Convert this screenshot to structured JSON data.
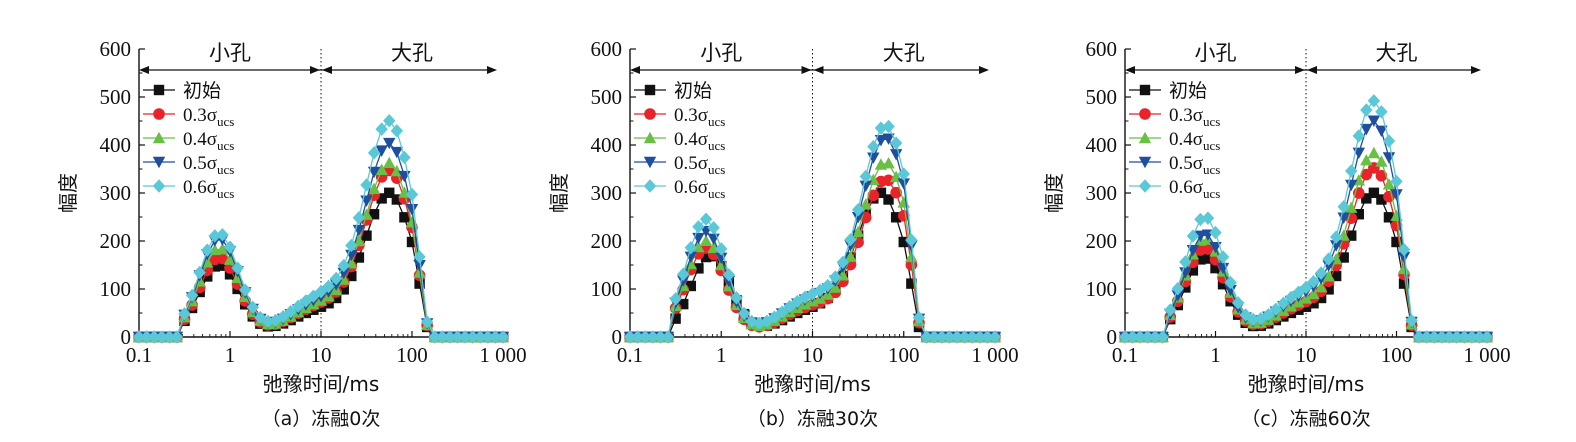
{
  "chart_data": [
    {
      "type": "line",
      "caption": "（a）冻融0次",
      "xlabel": "弛豫时间/ms",
      "ylabel": "幅度",
      "xscale": "log",
      "xlim": [
        0.1,
        1000
      ],
      "ylim": [
        0,
        600
      ],
      "xticks": [
        "0.1",
        "1",
        "10",
        "100",
        "1 000"
      ],
      "yticks": [
        "0",
        "100",
        "200",
        "300",
        "400",
        "500",
        "600"
      ],
      "region_labels": [
        "小孔",
        "大孔"
      ],
      "divider_x": 10,
      "legend": {
        "position": "top-left"
      },
      "series": [
        {
          "name": "初始",
          "peaks": [
            150,
            290
          ],
          "shift": 0
        },
        {
          "name": "0.3σucs",
          "peaks": [
            165,
            335
          ],
          "shift": 0
        },
        {
          "name": "0.4σucs",
          "peaks": [
            185,
            350
          ],
          "shift": 0
        },
        {
          "name": "0.5σucs",
          "peaks": [
            205,
            390
          ],
          "shift": 0
        },
        {
          "name": "0.6σucs",
          "peaks": [
            215,
            435
          ],
          "shift": 0
        }
      ]
    },
    {
      "type": "line",
      "caption": "（b）冻融30次",
      "xlabel": "弛豫时间/ms",
      "ylabel": "幅度",
      "xscale": "log",
      "xlim": [
        0.1,
        1000
      ],
      "ylim": [
        0,
        600
      ],
      "xticks": [
        "0.1",
        "1",
        "10",
        "100",
        "1 000"
      ],
      "yticks": [
        "0",
        "100",
        "200",
        "300",
        "400",
        "500",
        "600"
      ],
      "region_labels": [
        "小孔",
        "大孔"
      ],
      "divider_x": 10,
      "legend": {
        "position": "top-left"
      },
      "series": [
        {
          "name": "初始",
          "peaks": [
            170,
            290
          ],
          "shift": 0
        },
        {
          "name": "0.3σucs",
          "peaks": [
            185,
            320
          ],
          "shift": 0.05
        },
        {
          "name": "0.4σucs",
          "peaks": [
            200,
            355
          ],
          "shift": 0.05
        },
        {
          "name": "0.5σucs",
          "peaks": [
            220,
            405
          ],
          "shift": 0.05
        },
        {
          "name": "0.6σucs",
          "peaks": [
            245,
            430
          ],
          "shift": 0.05
        }
      ]
    },
    {
      "type": "line",
      "caption": "（c）冻融60次",
      "xlabel": "弛豫时间/ms",
      "ylabel": "幅度",
      "xscale": "log",
      "xlim": [
        0.1,
        1000
      ],
      "ylim": [
        0,
        600
      ],
      "xticks": [
        "0.1",
        "1",
        "10",
        "100",
        "1 000"
      ],
      "yticks": [
        "0",
        "100",
        "200",
        "300",
        "400",
        "500",
        "600"
      ],
      "region_labels": [
        "小孔",
        "大孔"
      ],
      "divider_x": 10,
      "legend": {
        "position": "top-left"
      },
      "series": [
        {
          "name": "初始",
          "peaks": [
            165,
            290
          ],
          "shift": 0
        },
        {
          "name": "0.3σucs",
          "peaks": [
            185,
            340
          ],
          "shift": 0
        },
        {
          "name": "0.4σucs",
          "peaks": [
            205,
            370
          ],
          "shift": 0
        },
        {
          "name": "0.5σucs",
          "peaks": [
            215,
            435
          ],
          "shift": 0
        },
        {
          "name": "0.6σucs",
          "peaks": [
            250,
            475
          ],
          "shift": 0
        }
      ]
    }
  ],
  "series_style": [
    {
      "color": "#111111",
      "marker": "square"
    },
    {
      "color": "#e8232a",
      "marker": "circle"
    },
    {
      "color": "#6abf45",
      "marker": "triangle-up"
    },
    {
      "color": "#1f4e9e",
      "marker": "triangle-down"
    },
    {
      "color": "#5bc8d8",
      "marker": "diamond"
    }
  ],
  "legend_entries": [
    {
      "base": "初始",
      "sub": ""
    },
    {
      "base": "0.3σ",
      "sub": "ucs"
    },
    {
      "base": "0.4σ",
      "sub": "ucs"
    },
    {
      "base": "0.5σ",
      "sub": "ucs"
    },
    {
      "base": "0.6σ",
      "sub": "ucs"
    }
  ]
}
